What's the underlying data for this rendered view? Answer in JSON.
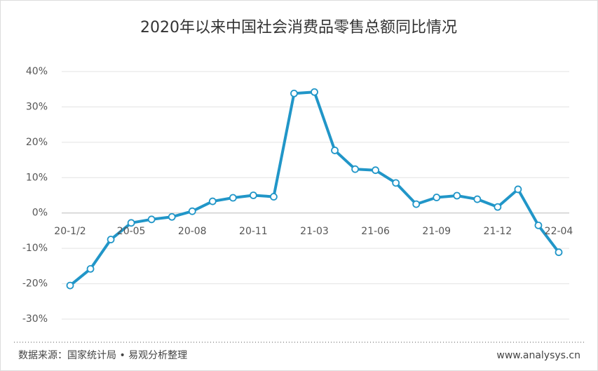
{
  "chart_data": {
    "type": "line",
    "title": "2020年以来中国社会消费品零售总额同比情况",
    "categories": [
      "20-1/2",
      null,
      null,
      "20-05",
      null,
      null,
      "20-08",
      null,
      null,
      "20-11",
      null,
      null,
      "21-03",
      null,
      null,
      "21-06",
      null,
      null,
      "21-09",
      null,
      null,
      "21-12",
      null,
      null,
      "22-04"
    ],
    "series": [
      {
        "color": "#2196c8",
        "values": [
          -20.5,
          -15.8,
          -7.5,
          -2.8,
          -1.8,
          -1.1,
          0.5,
          3.3,
          4.3,
          5.0,
          4.6,
          33.8,
          34.2,
          17.7,
          12.4,
          12.1,
          8.5,
          2.5,
          4.4,
          4.9,
          3.9,
          1.7,
          6.7,
          -3.5,
          -11.1
        ]
      }
    ],
    "ylim": [
      -30,
      40
    ],
    "yticks": [
      {
        "value": -30,
        "label": "-30%"
      },
      {
        "value": -20,
        "label": "-20%"
      },
      {
        "value": -10,
        "label": "-10%"
      },
      {
        "value": 0,
        "label": "0%"
      },
      {
        "value": 10,
        "label": "10%"
      },
      {
        "value": 20,
        "label": "20%"
      },
      {
        "value": 30,
        "label": "30%"
      },
      {
        "value": 40,
        "label": "40%"
      }
    ],
    "grid": true,
    "source": "数据来源：国家统计局 • 易观分析整理",
    "website": "www.analysys.cn"
  }
}
